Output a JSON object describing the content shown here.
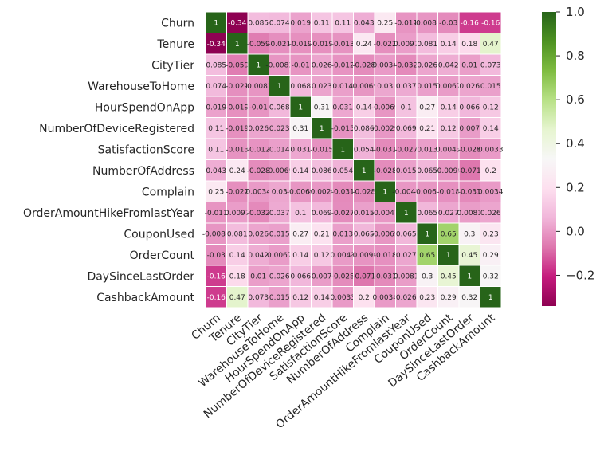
{
  "chart_data": {
    "type": "heatmap",
    "title": "",
    "labels": [
      "Churn",
      "Tenure",
      "CityTier",
      "WarehouseToHome",
      "HourSpendOnApp",
      "NumberOfDeviceRegistered",
      "SatisfactionScore",
      "NumberOfAddress",
      "Complain",
      "OrderAmountHikeFromlastYear",
      "CouponUsed",
      "OrderCount",
      "DaySinceLastOrder",
      "CashbackAmount"
    ],
    "values": [
      [
        1,
        -0.34,
        0.085,
        0.074,
        0.019,
        0.11,
        0.11,
        0.043,
        0.25,
        -0.011,
        -0.0086,
        -0.03,
        -0.16,
        -0.16
      ],
      [
        -0.34,
        1,
        -0.059,
        -0.021,
        -0.019,
        -0.019,
        -0.013,
        0.24,
        -0.022,
        0.0097,
        0.081,
        0.14,
        0.18,
        0.47
      ],
      [
        0.085,
        -0.059,
        1,
        -0.0082,
        -0.01,
        0.026,
        -0.012,
        -0.028,
        0.0034,
        -0.032,
        0.026,
        0.042,
        0.01,
        0.073
      ],
      [
        0.074,
        -0.021,
        -0.0082,
        1,
        0.068,
        0.023,
        0.014,
        -0.0069,
        0.03,
        0.037,
        0.015,
        0.0067,
        0.026,
        0.015
      ],
      [
        0.019,
        -0.019,
        -0.01,
        0.068,
        1,
        0.31,
        0.031,
        0.14,
        -0.0069,
        0.1,
        0.27,
        0.14,
        0.066,
        0.12
      ],
      [
        0.11,
        -0.019,
        0.026,
        0.023,
        0.31,
        1,
        -0.015,
        0.086,
        -0.0029,
        0.069,
        0.21,
        0.12,
        0.007,
        0.14
      ],
      [
        0.11,
        -0.013,
        -0.012,
        0.014,
        0.031,
        -0.015,
        1,
        0.054,
        -0.031,
        -0.027,
        0.013,
        0.0043,
        -0.028,
        0.0033
      ],
      [
        0.043,
        0.24,
        -0.028,
        -0.0069,
        0.14,
        0.086,
        0.054,
        1,
        -0.028,
        0.015,
        0.065,
        -0.0099,
        -0.071,
        0.2
      ],
      [
        0.25,
        -0.022,
        0.0034,
        0.03,
        -0.0069,
        -0.0029,
        -0.031,
        -0.028,
        1,
        -0.0047,
        -0.0069,
        -0.018,
        -0.031,
        0.0034
      ],
      [
        -0.011,
        0.0097,
        -0.032,
        0.037,
        0.1,
        0.069,
        -0.027,
        0.015,
        -0.0047,
        1,
        0.065,
        0.027,
        0.0081,
        0.026
      ],
      [
        -0.0086,
        0.081,
        0.026,
        0.015,
        0.27,
        0.21,
        0.013,
        0.065,
        -0.0069,
        0.065,
        1,
        0.65,
        0.3,
        0.23
      ],
      [
        -0.03,
        0.14,
        0.042,
        0.0067,
        0.14,
        0.12,
        0.0043,
        -0.0099,
        -0.018,
        0.027,
        0.65,
        1,
        0.45,
        0.29
      ],
      [
        -0.16,
        0.18,
        0.01,
        0.026,
        0.066,
        0.007,
        -0.028,
        -0.071,
        -0.031,
        0.0081,
        0.3,
        0.45,
        1,
        0.32
      ],
      [
        -0.16,
        0.47,
        0.073,
        0.015,
        0.12,
        0.14,
        0.0033,
        0.2,
        0.0034,
        0.026,
        0.23,
        0.29,
        0.32,
        1
      ]
    ],
    "colormap": "PiYG",
    "vmin": -0.34,
    "vmax": 1.0,
    "colorbar_ticks": [
      1.0,
      0.8,
      0.6,
      0.4,
      0.2,
      0.0,
      -0.2
    ],
    "colorbar_tick_labels": [
      "1.0",
      "0.8",
      "0.6",
      "0.4",
      "0.2",
      "0.0",
      "−0.2"
    ],
    "annotations": true,
    "cell_lines": "white"
  }
}
